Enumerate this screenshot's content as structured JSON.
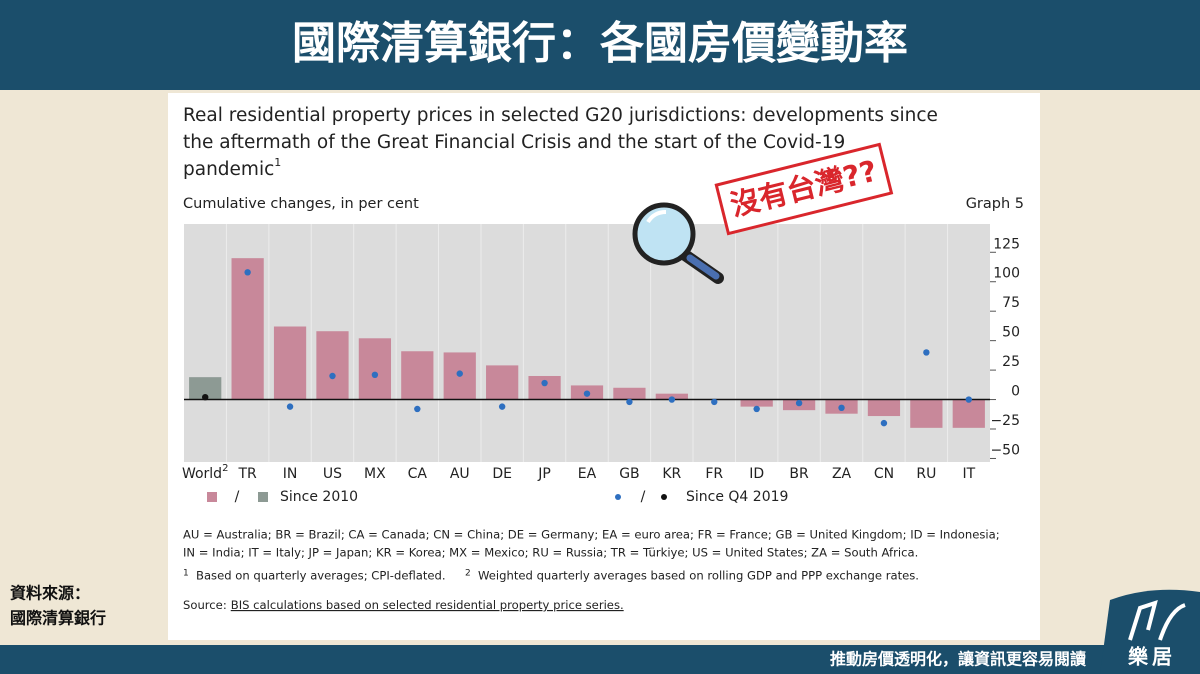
{
  "page": {
    "banner_title": "國際清算銀行：各國房價變動率",
    "source_label": "資料來源：",
    "source_name": "國際清算銀行",
    "slogan": "推動房價透明化，讓資訊更容易閱讀",
    "logo_text": "樂居"
  },
  "chart_data": {
    "type": "bar",
    "title_lines": [
      "Real residential property prices in selected G20 jurisdictions: developments since",
      "the aftermath of the Great Financial Crisis and the start of the Covid-19",
      "pandemic"
    ],
    "title_note": "1",
    "subtitle": "Cumulative changes, in per cent",
    "graph_label": "Graph 5",
    "annotation": "沒有台灣??",
    "categories": [
      "World",
      "TR",
      "IN",
      "US",
      "MX",
      "CA",
      "AU",
      "DE",
      "JP",
      "EA",
      "GB",
      "KR",
      "FR",
      "ID",
      "BR",
      "ZA",
      "CN",
      "RU",
      "IT"
    ],
    "first_category_note": "2",
    "series": [
      {
        "name": "Since 2010",
        "marker": "bar",
        "color": "#c8889a",
        "aggregate_color": "#8d9a94",
        "values": [
          19,
          120,
          62,
          58,
          52,
          41,
          40,
          29,
          20,
          12,
          10,
          5,
          0,
          -6,
          -9,
          -12,
          -14,
          -24,
          -24
        ]
      },
      {
        "name": "Since Q4 2019",
        "marker": "dot",
        "color": "#2e6fc0",
        "aggregate_color": "#111111",
        "values": [
          2,
          108,
          -6,
          20,
          21,
          -8,
          22,
          -6,
          14,
          5,
          -2,
          0,
          -2,
          -8,
          -3,
          -7,
          -20,
          40,
          0
        ]
      }
    ],
    "legend_separator": "/",
    "ylim": [
      -53,
      149
    ],
    "yticks": [
      {
        "value": -50,
        "label": "−50"
      },
      {
        "value": -25,
        "label": "−25"
      },
      0,
      25,
      50,
      75,
      100,
      125
    ],
    "notes": [
      "AU = Australia; BR = Brazil; CA = Canada; CN = China; DE = Germany; EA = euro area; FR = France; GB = United Kingdom; ID = Indonesia;",
      "IN = India; IT = Italy; JP = Japan; KR = Korea; MX = Mexico; RU = Russia; TR = Türkiye; US = United States; ZA = South Africa."
    ],
    "footnotes": [
      {
        "mark": "1",
        "text": "Based on quarterly averages; CPI-deflated."
      },
      {
        "mark": "2",
        "text": "Weighted quarterly averages based on rolling GDP and PPP exchange rates."
      }
    ],
    "source_prefix": "Source:",
    "source_text": "BIS calculations based on selected residential property price series."
  }
}
